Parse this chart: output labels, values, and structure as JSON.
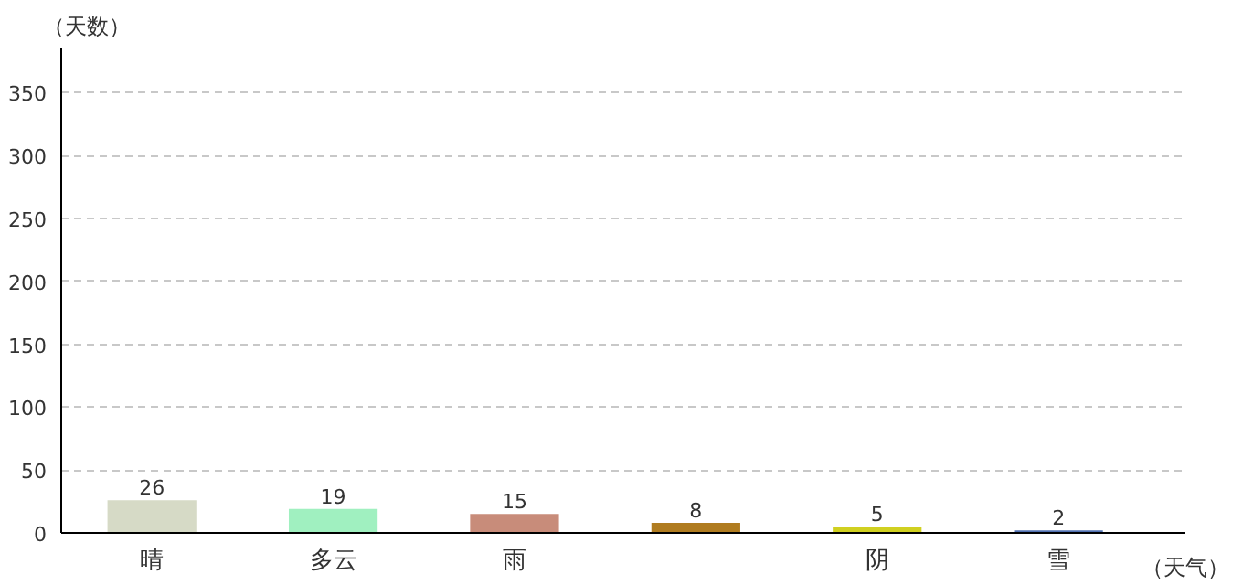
{
  "chart_data": {
    "type": "bar",
    "xlabel": "（天气）",
    "ylabel": "（天数）",
    "categories": [
      "晴",
      "多云",
      "雨",
      null,
      "阴",
      "雪"
    ],
    "values": [
      26,
      19,
      15,
      8,
      5,
      2
    ],
    "colors": [
      "#d6dac6",
      "#a0f0c0",
      "#c88c7a",
      "#b07c20",
      "#d0d020",
      "#5070b0"
    ],
    "ylim": [
      0,
      385
    ],
    "yticks": [
      0,
      50,
      100,
      150,
      200,
      250,
      300,
      350
    ],
    "grid": "y",
    "data_labels": true
  }
}
